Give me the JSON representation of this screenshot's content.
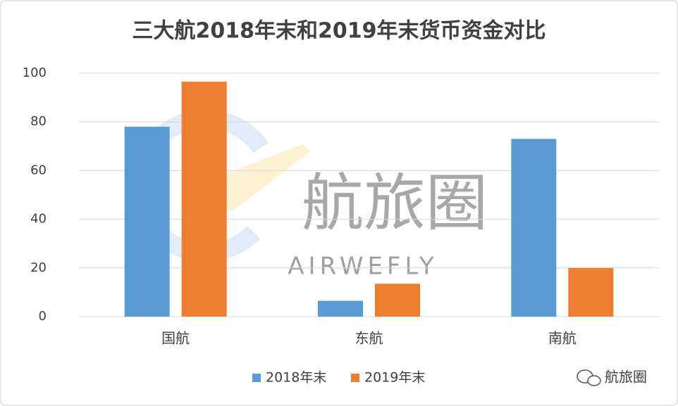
{
  "chart_data": {
    "type": "bar",
    "title": "三大航2018年末和2019年末货币资金对比",
    "categories": [
      "国航",
      "东航",
      "南航"
    ],
    "series": [
      {
        "name": "2018年末",
        "color": "#5b9bd5",
        "values": [
          78,
          6.5,
          73
        ]
      },
      {
        "name": "2019年末",
        "color": "#ed7d31",
        "values": [
          96.5,
          13.5,
          20
        ]
      }
    ],
    "ylim": [
      0,
      100
    ],
    "yticks": [
      0,
      20,
      40,
      60,
      80,
      100
    ],
    "grid": true,
    "legend": "bottom",
    "watermark": "航旅圈",
    "watermark_sub": "AIRWEFLY",
    "source": "航旅圈"
  }
}
